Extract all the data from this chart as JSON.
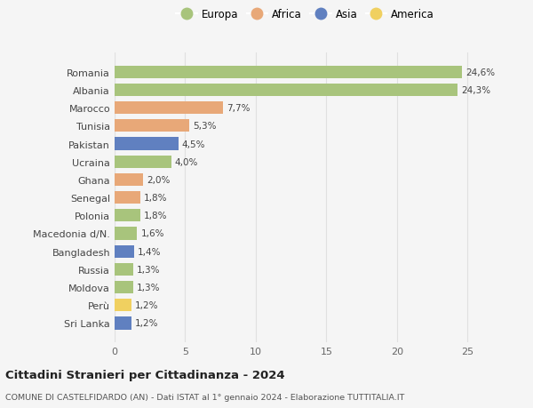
{
  "countries": [
    "Sri Lanka",
    "Perù",
    "Moldova",
    "Russia",
    "Bangladesh",
    "Macedonia d/N.",
    "Polonia",
    "Senegal",
    "Ghana",
    "Ucraina",
    "Pakistan",
    "Tunisia",
    "Marocco",
    "Albania",
    "Romania"
  ],
  "values": [
    1.2,
    1.2,
    1.3,
    1.3,
    1.4,
    1.6,
    1.8,
    1.8,
    2.0,
    4.0,
    4.5,
    5.3,
    7.7,
    24.3,
    24.6
  ],
  "labels": [
    "1,2%",
    "1,2%",
    "1,3%",
    "1,3%",
    "1,4%",
    "1,6%",
    "1,8%",
    "1,8%",
    "2,0%",
    "4,0%",
    "4,5%",
    "5,3%",
    "7,7%",
    "24,3%",
    "24,6%"
  ],
  "continents": [
    "Asia",
    "America",
    "Europa",
    "Europa",
    "Asia",
    "Europa",
    "Europa",
    "Africa",
    "Africa",
    "Europa",
    "Asia",
    "Africa",
    "Africa",
    "Europa",
    "Europa"
  ],
  "continent_colors": {
    "Europa": "#a8c47c",
    "Africa": "#e8a878",
    "Asia": "#6080c0",
    "America": "#f0d060"
  },
  "legend_order": [
    "Europa",
    "Africa",
    "Asia",
    "America"
  ],
  "title": "Cittadini Stranieri per Cittadinanza - 2024",
  "subtitle": "COMUNE DI CASTELFIDARDO (AN) - Dati ISTAT al 1° gennaio 2024 - Elaborazione TUTTITALIA.IT",
  "xlim": [
    0,
    27
  ],
  "xticks": [
    0,
    5,
    10,
    15,
    20,
    25
  ],
  "bg_color": "#f5f5f5",
  "grid_color": "#e0e0e0",
  "bar_height": 0.7
}
